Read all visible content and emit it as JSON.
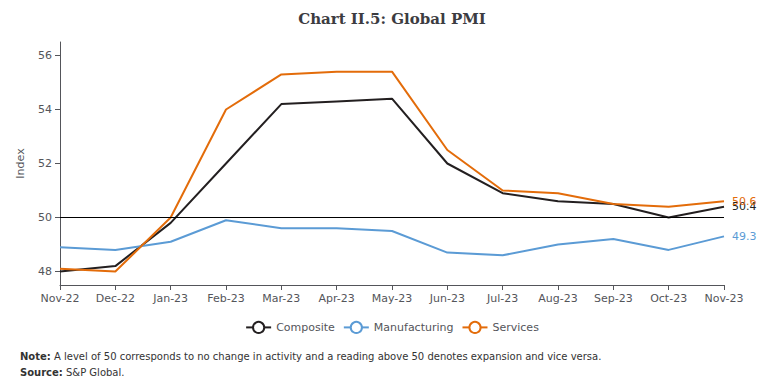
{
  "chart_data": {
    "type": "line",
    "title": "Chart II.5: Global PMI",
    "ylabel": "Index",
    "categories": [
      "Nov-22",
      "Dec-22",
      "Jan-23",
      "Feb-23",
      "Mar-23",
      "Apr-23",
      "May-23",
      "Jun-23",
      "Jul-23",
      "Aug-23",
      "Sep-23",
      "Oct-23",
      "Nov-23"
    ],
    "series": [
      {
        "name": "Composite",
        "color": "#231f20",
        "values": [
          48.0,
          48.2,
          49.8,
          52.0,
          54.2,
          54.3,
          54.4,
          52.0,
          50.9,
          50.6,
          50.5,
          50.0,
          50.4
        ],
        "end_label": "50.4"
      },
      {
        "name": "Manufacturing",
        "color": "#5b9bd5",
        "values": [
          48.9,
          48.8,
          49.1,
          49.9,
          49.6,
          49.6,
          49.5,
          48.7,
          48.6,
          49.0,
          49.2,
          48.8,
          49.3
        ],
        "end_label": "49.3"
      },
      {
        "name": "Services",
        "color": "#e36c0a",
        "values": [
          48.1,
          48.0,
          50.0,
          54.0,
          55.3,
          55.4,
          55.4,
          52.5,
          51.0,
          50.9,
          50.5,
          50.4,
          50.6
        ],
        "end_label": "50.6"
      }
    ],
    "reference_line": 50,
    "ylim": [
      47.5,
      56.5
    ],
    "yticks": [
      48,
      50,
      52,
      54,
      56
    ],
    "grid": false,
    "legend": "bottom",
    "note": "Note: A level of 50 corresponds to no change in activity and a reading above 50 denotes expansion and vice versa.",
    "source": "Source: S&P Global."
  }
}
